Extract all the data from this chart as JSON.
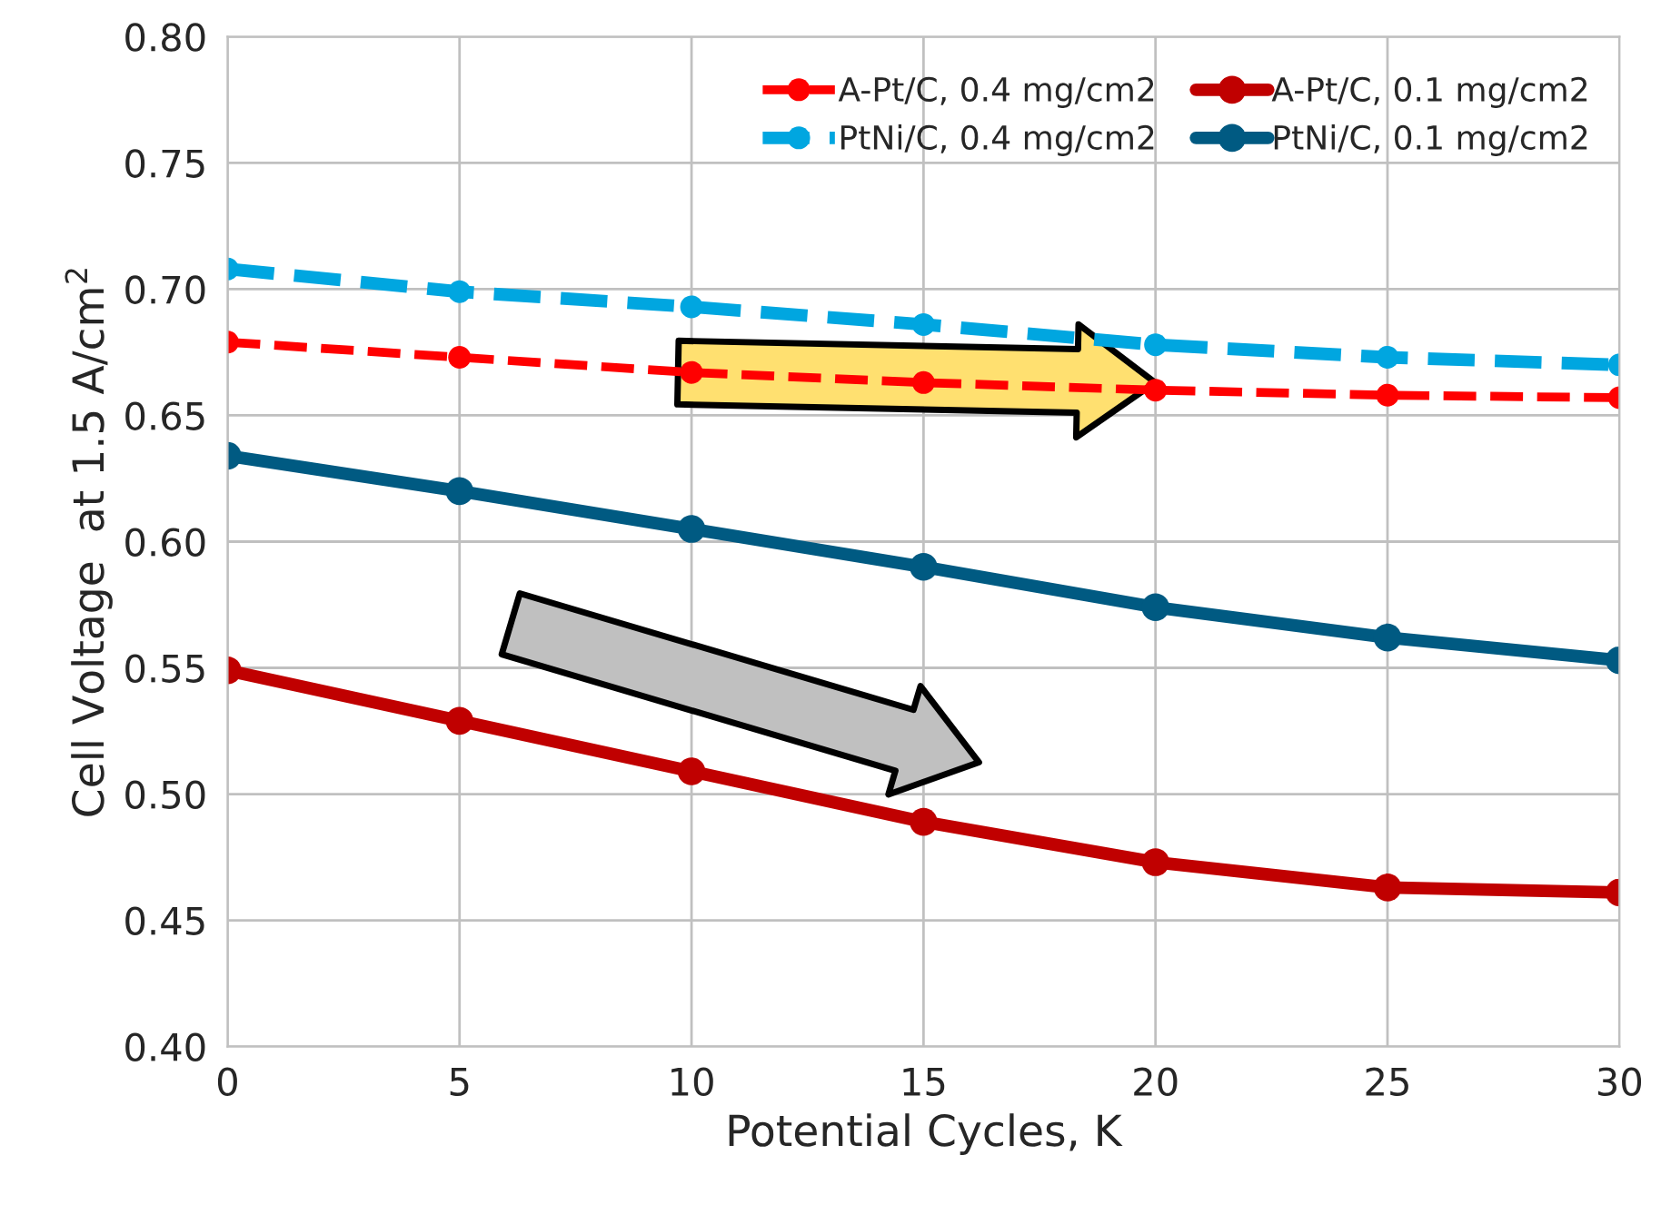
{
  "chart_data": {
    "type": "line",
    "xlabel": "Potential Cycles, K",
    "ylabel": "Cell Voltage  at 1.5 A/cm$^{2}$",
    "x": [
      0,
      5,
      10,
      15,
      20,
      25,
      30
    ],
    "series": [
      {
        "name": "A-Pt/C, 0.4 mg/cm2",
        "color": "#ff0000",
        "line_style": "dashed",
        "values": [
          0.679,
          0.673,
          0.667,
          0.663,
          0.66,
          0.658,
          0.657
        ]
      },
      {
        "name": "A-Pt/C, 0.1 mg/cm2",
        "color": "#c00000",
        "line_style": "solid",
        "values": [
          0.549,
          0.529,
          0.509,
          0.489,
          0.473,
          0.463,
          0.461
        ]
      },
      {
        "name": "PtNi/C, 0.4 mg/cm2",
        "color": "#00a6e0",
        "line_style": "dashed",
        "values": [
          0.708,
          0.699,
          0.693,
          0.686,
          0.678,
          0.673,
          0.67
        ]
      },
      {
        "name": "PtNi/C, 0.1 mg/cm2",
        "color": "#005a82",
        "line_style": "solid",
        "values": [
          0.634,
          0.62,
          0.605,
          0.59,
          0.574,
          0.562,
          0.553
        ]
      }
    ],
    "marker": "circle",
    "xlim": [
      0,
      30
    ],
    "xticks": [
      0,
      5,
      10,
      15,
      20,
      25,
      30
    ],
    "ylim": [
      0.4,
      0.8
    ],
    "yticks": [
      {
        "value": 0.4,
        "label": "0.40"
      },
      {
        "value": 0.45,
        "label": "0.45"
      },
      {
        "value": 0.5,
        "label": "0.50"
      },
      {
        "value": 0.55,
        "label": "0.55"
      },
      {
        "value": 0.6,
        "label": "0.60"
      },
      {
        "value": 0.65,
        "label": "0.65"
      },
      {
        "value": 0.7,
        "label": "0.70"
      },
      {
        "value": 0.75,
        "label": "0.75"
      },
      {
        "value": 0.8,
        "label": "0.80"
      }
    ],
    "grid": true,
    "legend": "top right"
  }
}
